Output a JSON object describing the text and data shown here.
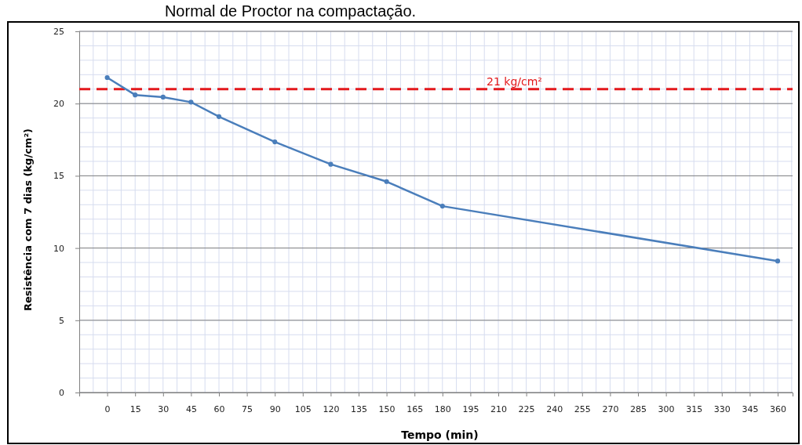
{
  "chart_data": {
    "type": "line",
    "title": "Normal de Proctor na compactação.",
    "xlabel": "Tempo (min)",
    "ylabel": "Resistência com 7 dias (kg/cm²)",
    "x": [
      0,
      15,
      30,
      45,
      60,
      90,
      120,
      150,
      180,
      360
    ],
    "series": [
      {
        "color": "#4a7ebb",
        "values": [
          21.8,
          20.6,
          20.45,
          20.1,
          19.1,
          17.35,
          15.8,
          14.6,
          12.9,
          9.1
        ]
      }
    ],
    "xlim": [
      -15,
      368
    ],
    "xticks": [
      0,
      15,
      30,
      45,
      60,
      75,
      90,
      105,
      120,
      135,
      150,
      165,
      180,
      195,
      210,
      225,
      240,
      255,
      270,
      285,
      300,
      315,
      330,
      345,
      360
    ],
    "ylim": [
      0,
      25
    ],
    "yticks": [
      0,
      5,
      10,
      15,
      20,
      25
    ],
    "ref_lines": [
      {
        "axis": "y",
        "value": 21,
        "label": "21 kg/cm²",
        "color": "#e3191c",
        "line_style": "dashed"
      }
    ],
    "grid": true,
    "marker": "circle",
    "line_style": "solid"
  }
}
